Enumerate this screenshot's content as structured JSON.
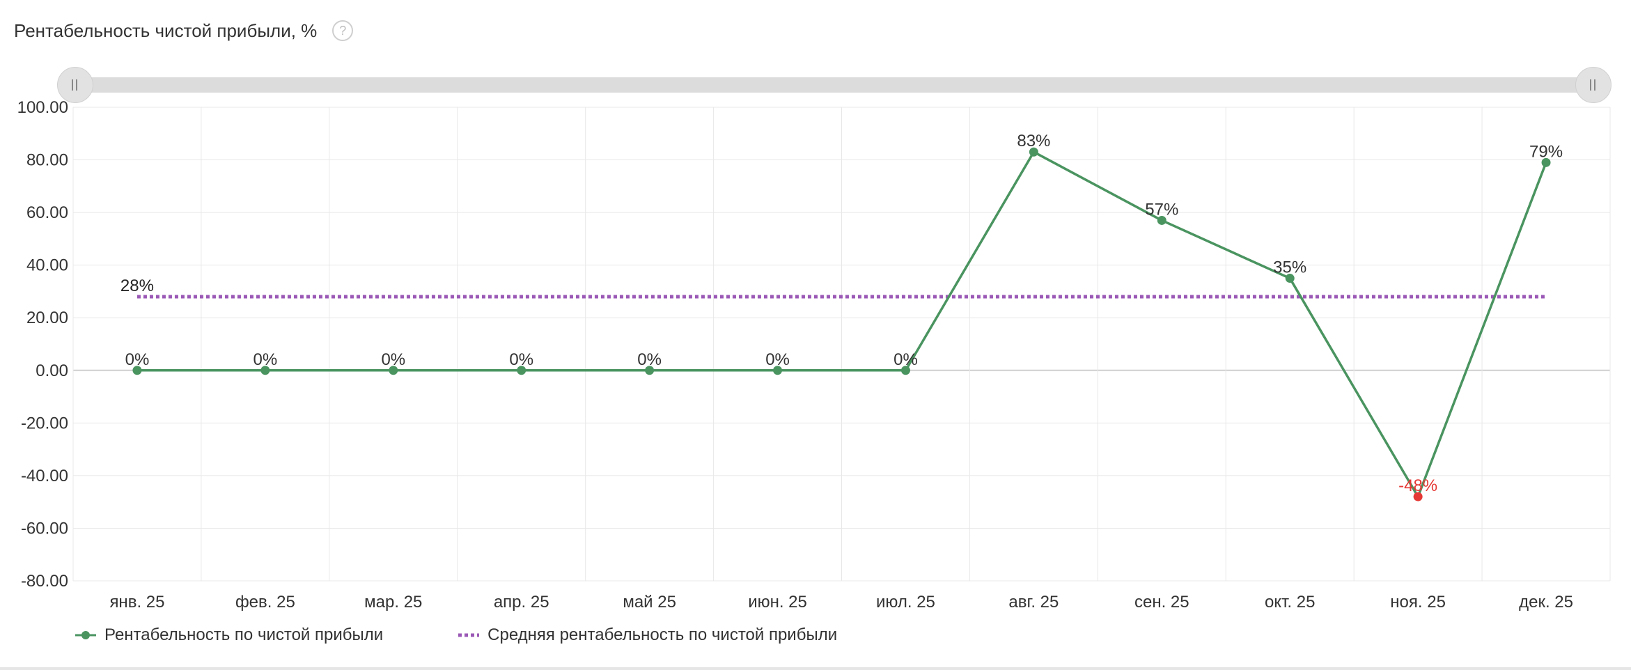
{
  "header": {
    "title": "Рентабельность чистой прибыли, %",
    "help_label": "?"
  },
  "chart_data": {
    "type": "line",
    "categories": [
      "янв. 25",
      "фев. 25",
      "мар. 25",
      "апр. 25",
      "май 25",
      "июн. 25",
      "июл. 25",
      "авг. 25",
      "сен. 25",
      "окт. 25",
      "ноя. 25",
      "дек. 25"
    ],
    "series": [
      {
        "name": "Рентабельность по чистой прибыли",
        "values": [
          0,
          0,
          0,
          0,
          0,
          0,
          0,
          83,
          57,
          35,
          -48,
          79
        ],
        "labels": [
          "0%",
          "0%",
          "0%",
          "0%",
          "0%",
          "0%",
          "0%",
          "83%",
          "57%",
          "35%",
          "-48%",
          "79%"
        ],
        "color": "#4a9460"
      },
      {
        "name": "Средняя рентабельность по чистой прибыли",
        "values": [
          28,
          28,
          28,
          28,
          28,
          28,
          28,
          28,
          28,
          28,
          28,
          28
        ],
        "labels": [
          "28%"
        ],
        "color": "#9b59b6",
        "style": "dotted"
      }
    ],
    "negative_color": "#e53935",
    "ylim": [
      -80,
      100
    ],
    "yticks": [
      "100.00",
      "80.00",
      "60.00",
      "40.00",
      "20.00",
      "0.00",
      "-20.00",
      "-40.00",
      "-60.00",
      "-80.00"
    ],
    "ytick_values": [
      100,
      80,
      60,
      40,
      20,
      0,
      -20,
      -40,
      -60,
      -80
    ],
    "grid": true,
    "legend_position": "bottom-left"
  }
}
